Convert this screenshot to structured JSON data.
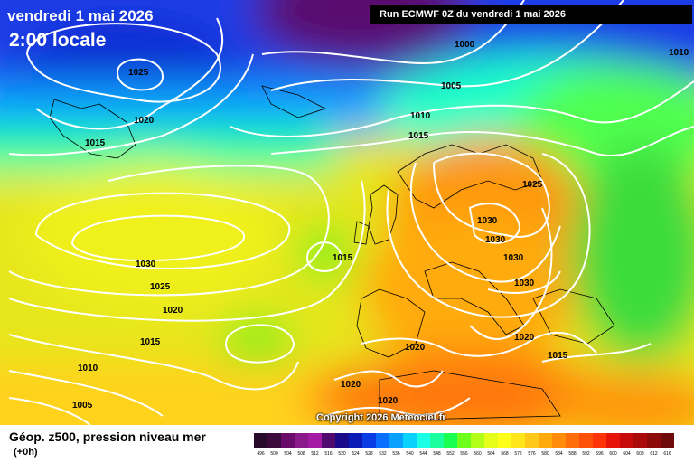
{
  "header": {
    "date": "vendredi 1 mai 2026",
    "time": "2:00 locale",
    "run": "Run ECMWF 0Z du vendredi 1 mai 2026"
  },
  "copyright": "Copyright 2026 Meteociel.fr",
  "footer": {
    "title": "Géop. z500, pression niveau mer",
    "subtitle": "(+0h)"
  },
  "isobar_labels": [
    {
      "text": "1025"
    },
    {
      "text": "1020"
    },
    {
      "text": "1015"
    },
    {
      "text": "1000"
    },
    {
      "text": "1005"
    },
    {
      "text": "1010"
    },
    {
      "text": "1015"
    },
    {
      "text": "1010"
    },
    {
      "text": "1025"
    },
    {
      "text": "1030"
    },
    {
      "text": "1030"
    },
    {
      "text": "1030"
    },
    {
      "text": "1030"
    },
    {
      "text": "1030"
    },
    {
      "text": "1025"
    },
    {
      "text": "1015"
    },
    {
      "text": "1020"
    },
    {
      "text": "1015"
    },
    {
      "text": "1010"
    },
    {
      "text": "1005"
    },
    {
      "text": "1020"
    },
    {
      "text": "1020"
    },
    {
      "text": "1020"
    },
    {
      "text": "1020"
    },
    {
      "text": "1015"
    }
  ],
  "legend": {
    "colors": [
      "#2a0a2a",
      "#3d0a3d",
      "#6a0a6a",
      "#8a1a8a",
      "#a41aa4",
      "#500a6e",
      "#1a0a8a",
      "#0a1ab4",
      "#0a3ce6",
      "#0a6eff",
      "#0aa0ff",
      "#0ad2ff",
      "#1affe6",
      "#1affa0",
      "#1aff50",
      "#6eff1a",
      "#b4ff1a",
      "#e6ff1a",
      "#ffff1a",
      "#ffe61a",
      "#ffc81a",
      "#ffaa0a",
      "#ff8c0a",
      "#ff6e0a",
      "#ff500a",
      "#ff320a",
      "#e6140a",
      "#c80a0a",
      "#aa0a0a",
      "#8c0a0a",
      "#6e0a0a",
      "#500a0a",
      "#320a0a"
    ],
    "values": [
      "496",
      "500",
      "504",
      "508",
      "512",
      "516",
      "520",
      "524",
      "528",
      "532",
      "536",
      "540",
      "544",
      "548",
      "552",
      "556",
      "560",
      "564",
      "568",
      "572",
      "576",
      "580",
      "584",
      "588",
      "592",
      "596",
      "600",
      "604",
      "608",
      "612",
      "616"
    ]
  }
}
